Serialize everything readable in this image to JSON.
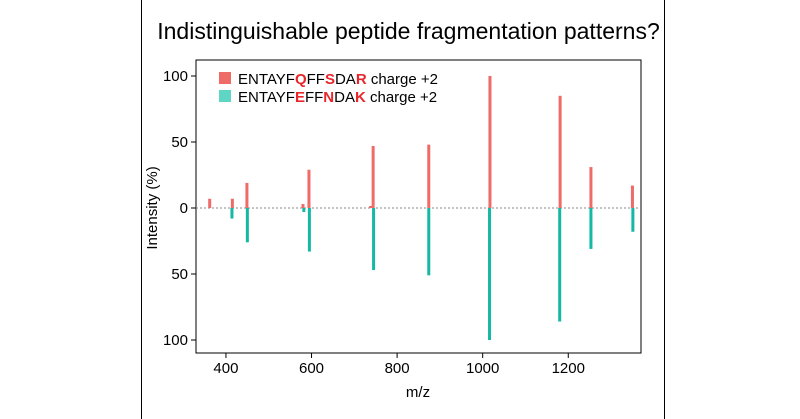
{
  "chart_data": {
    "type": "bar",
    "title": "Indistinguishable peptide fragmentation patterns?",
    "xlabel": "m/z",
    "ylabel": "Intensity (%)",
    "xlim": [
      330,
      1370
    ],
    "ylim": [
      -100,
      100
    ],
    "x_ticks": [
      400,
      600,
      800,
      1000,
      1200
    ],
    "y_ticks": [
      100,
      50,
      0,
      50,
      100
    ],
    "y_tick_values": [
      100,
      50,
      0,
      -50,
      -100
    ],
    "colors": {
      "series1": "#ef6b68",
      "series2": "#15b8a4",
      "baseline": "#888888"
    },
    "legend": [
      {
        "color": "#ef6b68",
        "segments": [
          {
            "text": "ENTAYF",
            "highlight": false
          },
          {
            "text": "Q",
            "highlight": true
          },
          {
            "text": "FF",
            "highlight": false
          },
          {
            "text": "S",
            "highlight": true
          },
          {
            "text": "DA",
            "highlight": false
          },
          {
            "text": "R",
            "highlight": true
          },
          {
            "text": " charge +2",
            "highlight": false
          }
        ]
      },
      {
        "color": "#5fd6c4",
        "segments": [
          {
            "text": "ENTAYF",
            "highlight": false
          },
          {
            "text": "E",
            "highlight": true
          },
          {
            "text": "FF",
            "highlight": false
          },
          {
            "text": "N",
            "highlight": true
          },
          {
            "text": "DA",
            "highlight": false
          },
          {
            "text": "K",
            "highlight": true
          },
          {
            "text": " charge +2",
            "highlight": false
          }
        ]
      }
    ],
    "series": [
      {
        "name": "ENTAYFQFFSDAR charge +2",
        "direction": "up",
        "points": [
          {
            "mz": 362,
            "intensity": 7
          },
          {
            "mz": 415,
            "intensity": 7
          },
          {
            "mz": 449,
            "intensity": 19
          },
          {
            "mz": 580,
            "intensity": 3
          },
          {
            "mz": 594,
            "intensity": 29
          },
          {
            "mz": 738,
            "intensity": 1
          },
          {
            "mz": 744,
            "intensity": 47
          },
          {
            "mz": 874,
            "intensity": 48
          },
          {
            "mz": 1017,
            "intensity": 100
          },
          {
            "mz": 1181,
            "intensity": 85
          },
          {
            "mz": 1253,
            "intensity": 31
          },
          {
            "mz": 1350,
            "intensity": 17
          }
        ]
      },
      {
        "name": "ENTAYFEFFNDAK charge +2",
        "direction": "down",
        "points": [
          {
            "mz": 414,
            "intensity": 8
          },
          {
            "mz": 450,
            "intensity": 26
          },
          {
            "mz": 582,
            "intensity": 3
          },
          {
            "mz": 595,
            "intensity": 33
          },
          {
            "mz": 745,
            "intensity": 47
          },
          {
            "mz": 874,
            "intensity": 51
          },
          {
            "mz": 1016,
            "intensity": 100
          },
          {
            "mz": 1180,
            "intensity": 86
          },
          {
            "mz": 1253,
            "intensity": 31
          },
          {
            "mz": 1351,
            "intensity": 18
          }
        ]
      }
    ]
  }
}
